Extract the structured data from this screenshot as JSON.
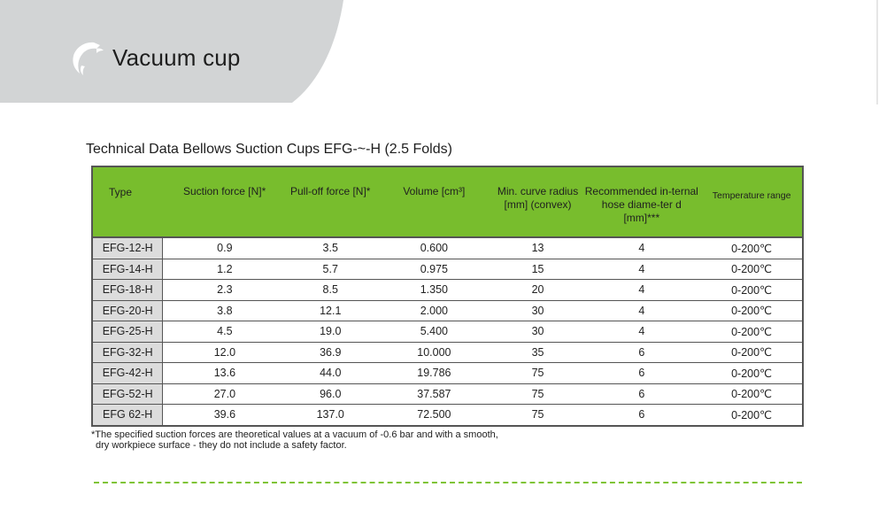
{
  "header": {
    "title": "Vacuum cup",
    "logo": "dolphin-logo",
    "background_color": "#d2d4d5",
    "logo_color": "#ffffff"
  },
  "section": {
    "heading": "Technical Data Bellows Suction Cups EFG-~-H (2.5 Folds)"
  },
  "table": {
    "header_color": "#78bd2d",
    "type_column_color": "#dcdcdc",
    "headers": [
      "Type",
      "Suction force [N]*",
      "Pull-off force [N]*",
      "Volume [cm³]",
      "Min. curve radius [mm] (convex)",
      "Recommended in-ternal hose diame-ter d [mm]***",
      "Temperature range"
    ],
    "rows": [
      [
        "EFG-12-H",
        "0.9",
        "3.5",
        "0.600",
        "13",
        "4",
        "0-200℃"
      ],
      [
        "EFG-14-H",
        "1.2",
        "5.7",
        "0.975",
        "15",
        "4",
        "0-200℃"
      ],
      [
        "EFG-18-H",
        "2.3",
        "8.5",
        "1.350",
        "20",
        "4",
        "0-200℃"
      ],
      [
        "EFG-20-H",
        "3.8",
        "12.1",
        "2.000",
        "30",
        "4",
        "0-200℃"
      ],
      [
        "EFG-25-H",
        "4.5",
        "19.0",
        "5.400",
        "30",
        "4",
        "0-200℃"
      ],
      [
        "EFG-32-H",
        "12.0",
        "36.9",
        "10.000",
        "35",
        "6",
        "0-200℃"
      ],
      [
        "EFG-42-H",
        "13.6",
        "44.0",
        "19.786",
        "75",
        "6",
        "0-200℃"
      ],
      [
        "EFG-52-H",
        "27.0",
        "96.0",
        "37.587",
        "75",
        "6",
        "0-200℃"
      ],
      [
        "EFG 62-H",
        "39.6",
        "137.0",
        "72.500",
        "75",
        "6",
        "0-200℃"
      ]
    ]
  },
  "footnote": {
    "line1": "*The specified suction forces are theoretical values at a vacuum of -0.6 bar and with a smooth,",
    "line2": "dry workpiece surface - they do not include a safety factor."
  },
  "divider_color": "#7fc436"
}
